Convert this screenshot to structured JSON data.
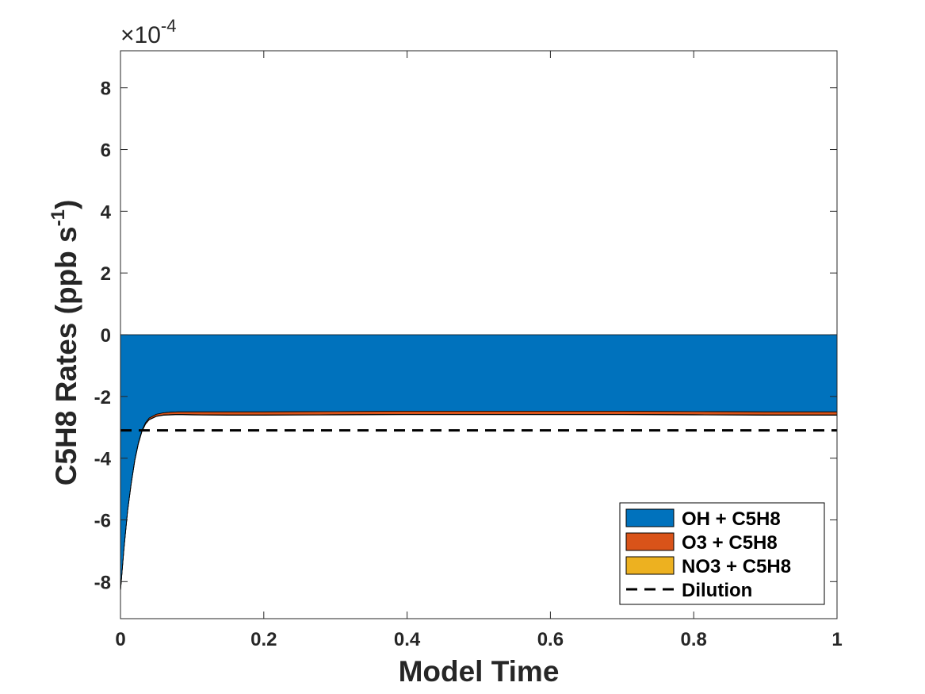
{
  "chart_data": {
    "type": "area",
    "xlabel": "Model Time",
    "ylabel_main": "C5H8 Rates (ppb s",
    "ylabel_sup": "-1",
    "ylabel_close": ")",
    "y_multiplier": {
      "base": "×10",
      "exponent": "-4"
    },
    "xlim": [
      0,
      1
    ],
    "ylim": [
      -9.2,
      9.2
    ],
    "x_ticks": [
      0,
      0.2,
      0.4,
      0.6,
      0.8,
      1
    ],
    "x_tick_labels": [
      "0",
      "0.2",
      "0.4",
      "0.6",
      "0.8",
      "1"
    ],
    "y_ticks": [
      -8,
      -6,
      -4,
      -2,
      0,
      2,
      4,
      6,
      8
    ],
    "y_tick_labels": [
      "-8",
      "-6",
      "-4",
      "-2",
      "0",
      "2",
      "4",
      "6",
      "8"
    ],
    "grid": false,
    "legend_position": "bottom-right",
    "x": [
      0,
      0.005,
      0.01,
      0.015,
      0.02,
      0.025,
      0.03,
      0.035,
      0.04,
      0.05,
      0.06,
      0.07,
      0.08,
      0.1,
      0.15,
      0.2,
      0.3,
      0.4,
      0.5,
      0.6,
      0.7,
      0.8,
      0.9,
      1.0
    ],
    "series": [
      {
        "name": "OH + C5H8",
        "color": "#0072bd",
        "values": [
          -8.3,
          -6.9,
          -5.7,
          -4.8,
          -4.05,
          -3.5,
          -3.1,
          -2.85,
          -2.7,
          -2.58,
          -2.53,
          -2.51,
          -2.5,
          -2.5,
          -2.5,
          -2.5,
          -2.49,
          -2.48,
          -2.48,
          -2.48,
          -2.48,
          -2.49,
          -2.5,
          -2.5
        ]
      },
      {
        "name": "O3 + C5H8",
        "color": "#d95319",
        "values": [
          -0.005,
          -0.005,
          -0.01,
          -0.015,
          -0.02,
          -0.025,
          -0.03,
          -0.04,
          -0.05,
          -0.06,
          -0.07,
          -0.08,
          -0.08,
          -0.09,
          -0.1,
          -0.1,
          -0.1,
          -0.1,
          -0.1,
          -0.1,
          -0.1,
          -0.1,
          -0.1,
          -0.1
        ]
      },
      {
        "name": "NO3 + C5H8",
        "color": "#edb120",
        "values": [
          -0.01,
          -0.01,
          -0.01,
          -0.01,
          -0.01,
          -0.01,
          -0.01,
          -0.01,
          -0.01,
          -0.01,
          -0.01,
          -0.01,
          -0.01,
          -0.01,
          -0.01,
          -0.01,
          -0.01,
          -0.01,
          -0.01,
          -0.01,
          -0.01,
          -0.01,
          -0.01,
          -0.01
        ]
      },
      {
        "name": "Dilution",
        "color": "#000000",
        "style": "dashed",
        "values": [
          -3.1,
          -3.1,
          -3.1,
          -3.1,
          -3.1,
          -3.1,
          -3.1,
          -3.1,
          -3.1,
          -3.1,
          -3.1,
          -3.1,
          -3.1,
          -3.1,
          -3.1,
          -3.1,
          -3.1,
          -3.1,
          -3.1,
          -3.1,
          -3.1,
          -3.1,
          -3.1,
          -3.1
        ]
      }
    ]
  }
}
